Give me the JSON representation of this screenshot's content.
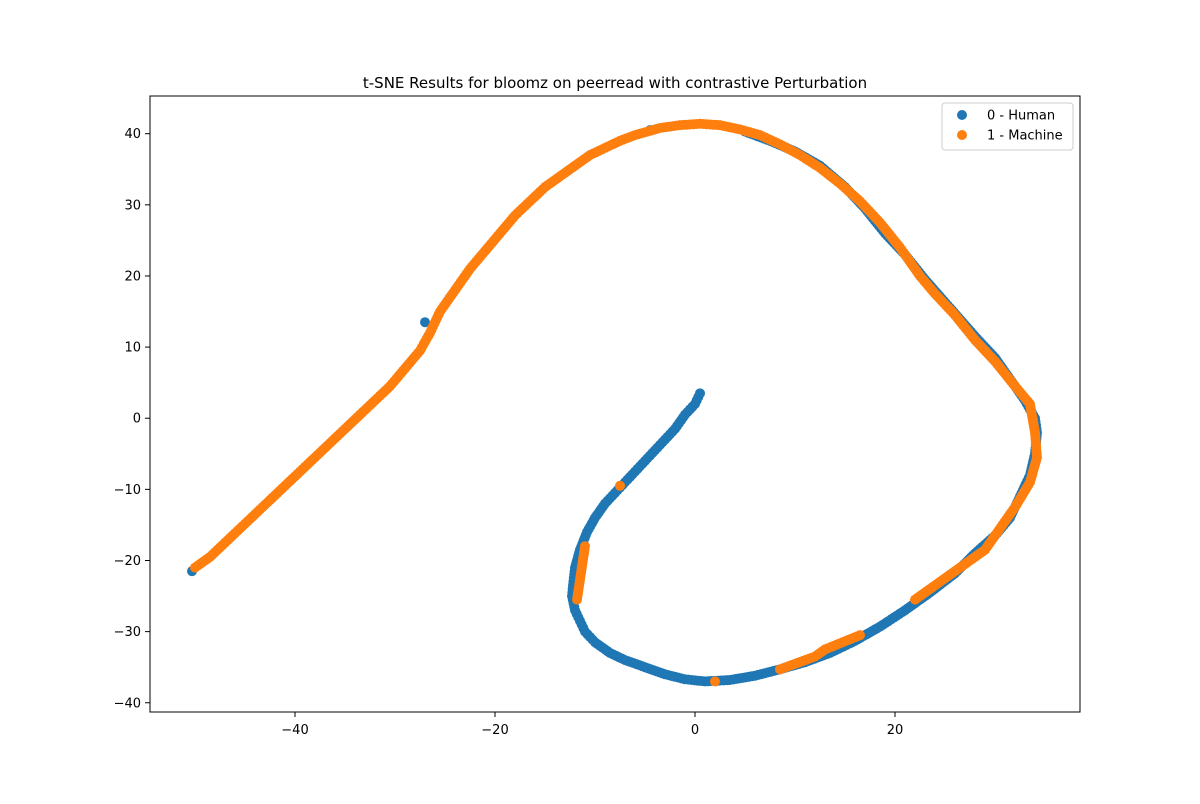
{
  "chart_data": {
    "type": "scatter",
    "title": "t-SNE Results for bloomz on peerread with contrastive Perturbation",
    "xlabel": "",
    "ylabel": "",
    "xlim": [
      -54.5,
      38.5
    ],
    "ylim": [
      -41.3,
      45.3
    ],
    "xticks": [
      -40,
      -20,
      0,
      20
    ],
    "xtick_labels": [
      "−40",
      "−20",
      "0",
      "20"
    ],
    "yticks": [
      -40,
      -30,
      -20,
      -10,
      0,
      10,
      20,
      30,
      40
    ],
    "ytick_labels": [
      "−40",
      "−30",
      "−20",
      "−10",
      "0",
      "10",
      "20",
      "30",
      "40"
    ],
    "grid": false,
    "legend_position": "top-right",
    "series": [
      {
        "name": "0 - Human",
        "color": "#1f77b4",
        "points": [
          [
            0.5,
            3.5
          ],
          [
            0.0,
            2.0
          ],
          [
            -1.0,
            0.5
          ],
          [
            -2.0,
            -1.5
          ],
          [
            -3.0,
            -3.0
          ],
          [
            -4.0,
            -4.5
          ],
          [
            -5.0,
            -6.0
          ],
          [
            -6.0,
            -7.5
          ],
          [
            -7.0,
            -9.0
          ],
          [
            -8.0,
            -10.5
          ],
          [
            -9.0,
            -12.0
          ],
          [
            -10.0,
            -14.0
          ],
          [
            -10.8,
            -16.0
          ],
          [
            -11.5,
            -18.5
          ],
          [
            -12.0,
            -21.0
          ],
          [
            -12.2,
            -23.5
          ],
          [
            -12.3,
            -25.0
          ],
          [
            -12.0,
            -27.0
          ],
          [
            -11.5,
            -28.5
          ],
          [
            -11.0,
            -30.0
          ],
          [
            -10.0,
            -31.5
          ],
          [
            -8.5,
            -33.0
          ],
          [
            -7.0,
            -34.0
          ],
          [
            -5.0,
            -35.0
          ],
          [
            -3.0,
            -36.0
          ],
          [
            -1.0,
            -36.7
          ],
          [
            1.0,
            -37.0
          ],
          [
            3.5,
            -36.8
          ],
          [
            6.0,
            -36.2
          ],
          [
            8.5,
            -35.3
          ],
          [
            11.0,
            -34.3
          ],
          [
            13.5,
            -33.0
          ],
          [
            16.0,
            -31.3
          ],
          [
            18.5,
            -29.3
          ],
          [
            21.0,
            -27.0
          ],
          [
            23.5,
            -24.5
          ],
          [
            26.0,
            -21.8
          ],
          [
            28.0,
            -19.0
          ],
          [
            30.0,
            -16.5
          ],
          [
            31.5,
            -14.0
          ],
          [
            32.5,
            -11.0
          ],
          [
            33.5,
            -8.0
          ],
          [
            34.0,
            -5.0
          ],
          [
            34.2,
            -2.0
          ],
          [
            34.0,
            0.0
          ],
          [
            33.0,
            2.5
          ],
          [
            31.5,
            5.5
          ],
          [
            30.0,
            8.5
          ],
          [
            28.0,
            11.5
          ],
          [
            25.5,
            15.5
          ],
          [
            23.0,
            19.5
          ],
          [
            21.0,
            23.0
          ],
          [
            19.0,
            26.0
          ],
          [
            17.0,
            29.5
          ],
          [
            15.0,
            32.5
          ],
          [
            12.5,
            35.5
          ],
          [
            10.0,
            37.5
          ],
          [
            7.5,
            39.0
          ],
          [
            5.0,
            40.3
          ],
          [
            -4.5,
            40.5
          ],
          [
            -27.0,
            13.5
          ],
          [
            -50.3,
            -21.5
          ]
        ]
      },
      {
        "name": "1 - Machine",
        "color": "#ff7f0e",
        "points": [
          [
            -50.0,
            -21.0
          ],
          [
            -48.5,
            -19.5
          ],
          [
            -47.0,
            -17.5
          ],
          [
            -45.5,
            -15.5
          ],
          [
            -44.0,
            -13.5
          ],
          [
            -42.5,
            -11.5
          ],
          [
            -41.0,
            -9.5
          ],
          [
            -39.5,
            -7.5
          ],
          [
            -38.0,
            -5.5
          ],
          [
            -36.5,
            -3.5
          ],
          [
            -35.0,
            -1.5
          ],
          [
            -33.5,
            0.5
          ],
          [
            -32.0,
            2.5
          ],
          [
            -30.5,
            4.5
          ],
          [
            -29.0,
            7.0
          ],
          [
            -27.5,
            9.5
          ],
          [
            -26.5,
            12.0
          ],
          [
            -25.5,
            15.0
          ],
          [
            -24.0,
            18.0
          ],
          [
            -22.5,
            21.0
          ],
          [
            -21.0,
            23.5
          ],
          [
            -19.5,
            26.0
          ],
          [
            -18.0,
            28.5
          ],
          [
            -16.5,
            30.5
          ],
          [
            -15.0,
            32.5
          ],
          [
            -13.5,
            34.0
          ],
          [
            -12.0,
            35.5
          ],
          [
            -10.5,
            37.0
          ],
          [
            -9.0,
            38.0
          ],
          [
            -7.5,
            39.0
          ],
          [
            -6.0,
            39.8
          ],
          [
            -3.5,
            40.8
          ],
          [
            -1.5,
            41.2
          ],
          [
            0.5,
            41.4
          ],
          [
            2.5,
            41.2
          ],
          [
            4.5,
            40.6
          ],
          [
            6.5,
            39.8
          ],
          [
            8.5,
            38.5
          ],
          [
            10.5,
            37.0
          ],
          [
            12.5,
            35.2
          ],
          [
            14.5,
            33.0
          ],
          [
            16.5,
            30.5
          ],
          [
            18.5,
            27.5
          ],
          [
            20.5,
            24.0
          ],
          [
            22.5,
            20.0
          ],
          [
            24.0,
            17.5
          ],
          [
            26.0,
            14.5
          ],
          [
            28.0,
            11.0
          ],
          [
            30.0,
            8.0
          ],
          [
            32.0,
            4.5
          ],
          [
            33.5,
            2.0
          ],
          [
            34.0,
            -2.0
          ],
          [
            34.2,
            -5.5
          ],
          [
            33.5,
            -9.0
          ],
          [
            32.0,
            -12.5
          ],
          [
            29.0,
            -18.5
          ],
          [
            27.0,
            -20.5
          ],
          [
            25.0,
            -22.5
          ],
          [
            22.0,
            -25.5
          ],
          [
            16.5,
            -30.5
          ],
          [
            13.0,
            -32.5
          ],
          [
            12.0,
            -33.5
          ],
          [
            8.5,
            -35.3
          ],
          [
            2.0,
            -37.0
          ],
          [
            -7.5,
            -9.5
          ],
          [
            -11.0,
            -18.0
          ],
          [
            -11.8,
            -25.5
          ]
        ]
      }
    ]
  }
}
